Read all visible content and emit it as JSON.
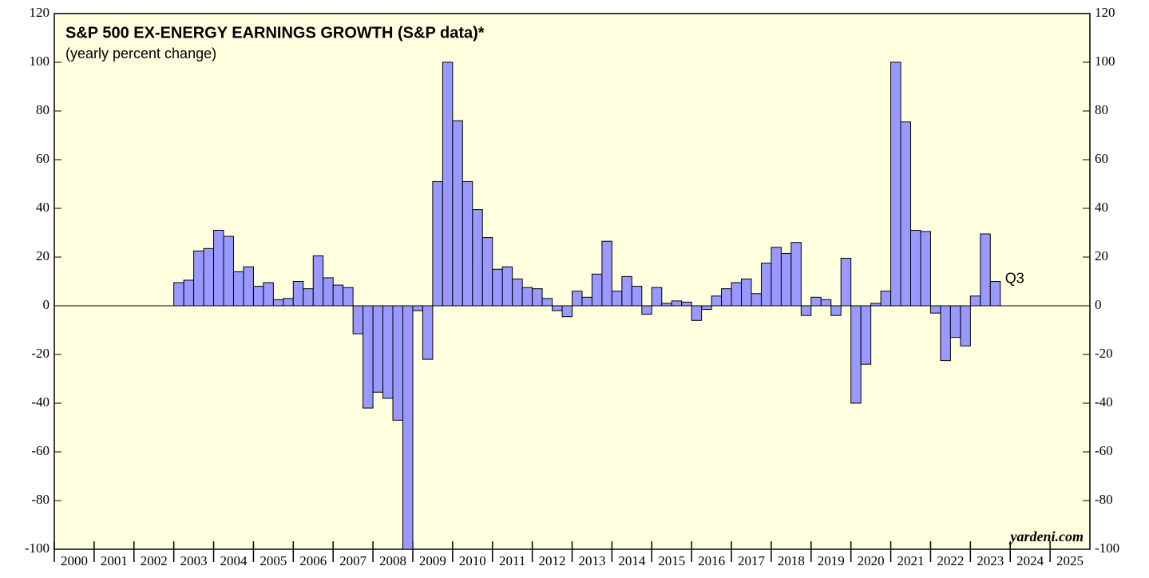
{
  "chart_data": {
    "type": "bar",
    "title": "S&P 500 EX-ENERGY EARNINGS GROWTH (S&P data)*",
    "subtitle": "(yearly percent change)",
    "annotations": [
      "Q3",
      "yardeni.com"
    ],
    "color": "#9999ff",
    "background": "#ffffe0",
    "x": [
      2003,
      2003.25,
      2003.5,
      2003.75,
      2004,
      2004.25,
      2004.5,
      2004.75,
      2005,
      2005.25,
      2005.5,
      2005.75,
      2006,
      2006.25,
      2006.5,
      2006.75,
      2007,
      2007.25,
      2007.5,
      2007.75,
      2008,
      2008.25,
      2008.5,
      2008.75,
      2009,
      2009.25,
      2009.5,
      2009.75,
      2010,
      2010.25,
      2010.5,
      2010.75,
      2011,
      2011.25,
      2011.5,
      2011.75,
      2012,
      2012.25,
      2012.5,
      2012.75,
      2013,
      2013.25,
      2013.5,
      2013.75,
      2014,
      2014.25,
      2014.5,
      2014.75,
      2015,
      2015.25,
      2015.5,
      2015.75,
      2016,
      2016.25,
      2016.5,
      2016.75,
      2017,
      2017.25,
      2017.5,
      2017.75,
      2018,
      2018.25,
      2018.5,
      2018.75,
      2019,
      2019.25,
      2019.5,
      2019.75,
      2020,
      2020.25,
      2020.5,
      2020.75,
      2021,
      2021.25,
      2021.5,
      2021.75,
      2022,
      2022.25,
      2022.5,
      2022.75,
      2023,
      2023.25,
      2023.5
    ],
    "values": [
      9.5,
      10.5,
      22.5,
      23.5,
      31,
      28.5,
      14,
      16,
      8,
      9.5,
      2.5,
      3,
      10,
      7,
      20.5,
      11.5,
      8.5,
      7.5,
      -11.5,
      -42,
      -35.5,
      -38,
      -47,
      -100,
      -2,
      -22,
      51,
      100,
      76,
      51,
      39.5,
      28,
      15,
      16,
      11,
      7.5,
      7,
      3,
      -2,
      -4.5,
      6,
      3.5,
      13,
      26.5,
      6,
      12,
      8,
      -3.5,
      7.5,
      1,
      2,
      1.5,
      -6,
      -1.5,
      4,
      7,
      9.5,
      11,
      5,
      17.5,
      24,
      21.5,
      26,
      -4,
      3.5,
      2.5,
      -4,
      19.5,
      -40,
      -24,
      1,
      6,
      100,
      75.5,
      31,
      30.5,
      -3,
      -22.5,
      -13,
      -16.5,
      4,
      29.5,
      10
    ],
    "xlim": [
      2000,
      2026
    ],
    "xticks": [
      2000,
      2001,
      2002,
      2003,
      2004,
      2005,
      2006,
      2007,
      2008,
      2009,
      2010,
      2011,
      2012,
      2013,
      2014,
      2015,
      2016,
      2017,
      2018,
      2019,
      2020,
      2021,
      2022,
      2023,
      2024,
      2025
    ],
    "ylim": [
      -100,
      120
    ],
    "yticks": [
      -100,
      -80,
      -60,
      -40,
      -20,
      0,
      20,
      40,
      60,
      80,
      100,
      120
    ],
    "grid": false
  }
}
